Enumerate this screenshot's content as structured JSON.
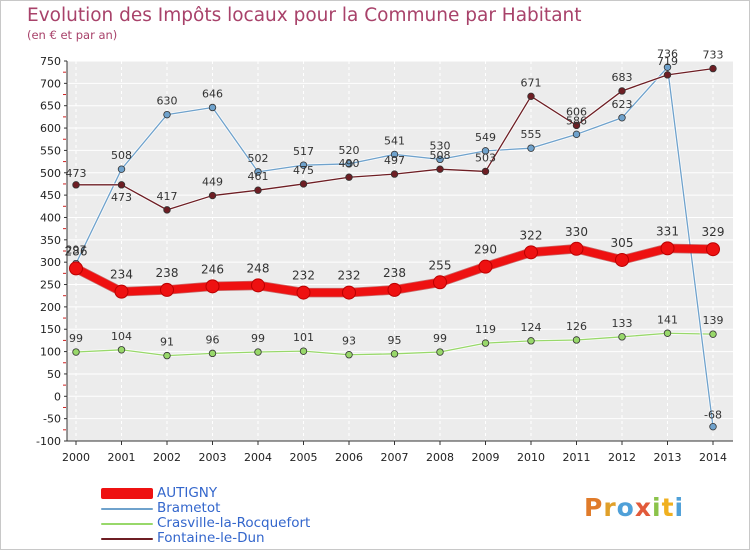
{
  "title": "Evolution des Impôts locaux pour la Commune par Habitant",
  "subtitle": "(en € et par an)",
  "logo": {
    "letters": [
      "P",
      "r",
      "o",
      "x",
      "i",
      "t",
      "i"
    ],
    "colors": [
      "#e07b2a",
      "#e0a02a",
      "#4fa0d8",
      "#e25a3a",
      "#8bc34a",
      "#f0b020",
      "#4fa0d8"
    ]
  },
  "chart_data": {
    "type": "line",
    "x": [
      "2000",
      "2001",
      "2002",
      "2003",
      "2004",
      "2005",
      "2006",
      "2007",
      "2008",
      "2009",
      "2010",
      "2011",
      "2012",
      "2013",
      "2014"
    ],
    "ylim": [
      -100,
      750
    ],
    "yticks": [
      -100,
      -50,
      0,
      50,
      100,
      150,
      200,
      250,
      300,
      350,
      400,
      450,
      500,
      550,
      600,
      650,
      700,
      750
    ],
    "grid": true,
    "series": [
      {
        "name": "AUTIGNY",
        "color": "#ee1111",
        "width": 8,
        "values": [
          286,
          234,
          238,
          246,
          248,
          232,
          232,
          238,
          255,
          290,
          322,
          330,
          305,
          331,
          329
        ]
      },
      {
        "name": "Brametot",
        "color": "#6fa2cc",
        "width": 1.3,
        "values": [
          297,
          508,
          630,
          646,
          502,
          517,
          520,
          541,
          530,
          549,
          555,
          586,
          623,
          736,
          -68
        ]
      },
      {
        "name": "Crasville-la-Rocquefort",
        "color": "#98d86a",
        "width": 1.3,
        "values": [
          99,
          104,
          91,
          96,
          99,
          101,
          93,
          95,
          99,
          119,
          124,
          126,
          133,
          141,
          139
        ]
      },
      {
        "name": "Fontaine-le-Dun",
        "color": "#6e1e24",
        "width": 1.3,
        "values": [
          473,
          473,
          417,
          449,
          461,
          475,
          490,
          497,
          508,
          503,
          671,
          606,
          683,
          719,
          733
        ]
      }
    ],
    "labels": [
      {
        "series": "AUTIGNY",
        "text": [
          "286",
          "234",
          "238",
          "246",
          "248",
          "232",
          "232",
          "238",
          "255",
          "290",
          "322",
          "330",
          "305",
          "331",
          "329"
        ]
      },
      {
        "series": "Brametot",
        "text": [
          "297",
          "508",
          "630",
          "646",
          "502",
          "517",
          "520",
          "541",
          "530",
          "549",
          "555",
          "586",
          "623",
          "736",
          "-68"
        ]
      },
      {
        "series": "Crasville-la-Rocquefort",
        "text": [
          "99",
          "104",
          "91",
          "96",
          "99",
          "101",
          "93",
          "95",
          "99",
          "119",
          "124",
          "126",
          "133",
          "141",
          "139"
        ]
      },
      {
        "series": "Fontaine-le-Dun",
        "text": [
          "473",
          "473",
          "417",
          "449",
          "461",
          "475",
          "490",
          "497",
          "508",
          "503",
          "671",
          "606",
          "683",
          "719",
          "733"
        ]
      }
    ]
  }
}
